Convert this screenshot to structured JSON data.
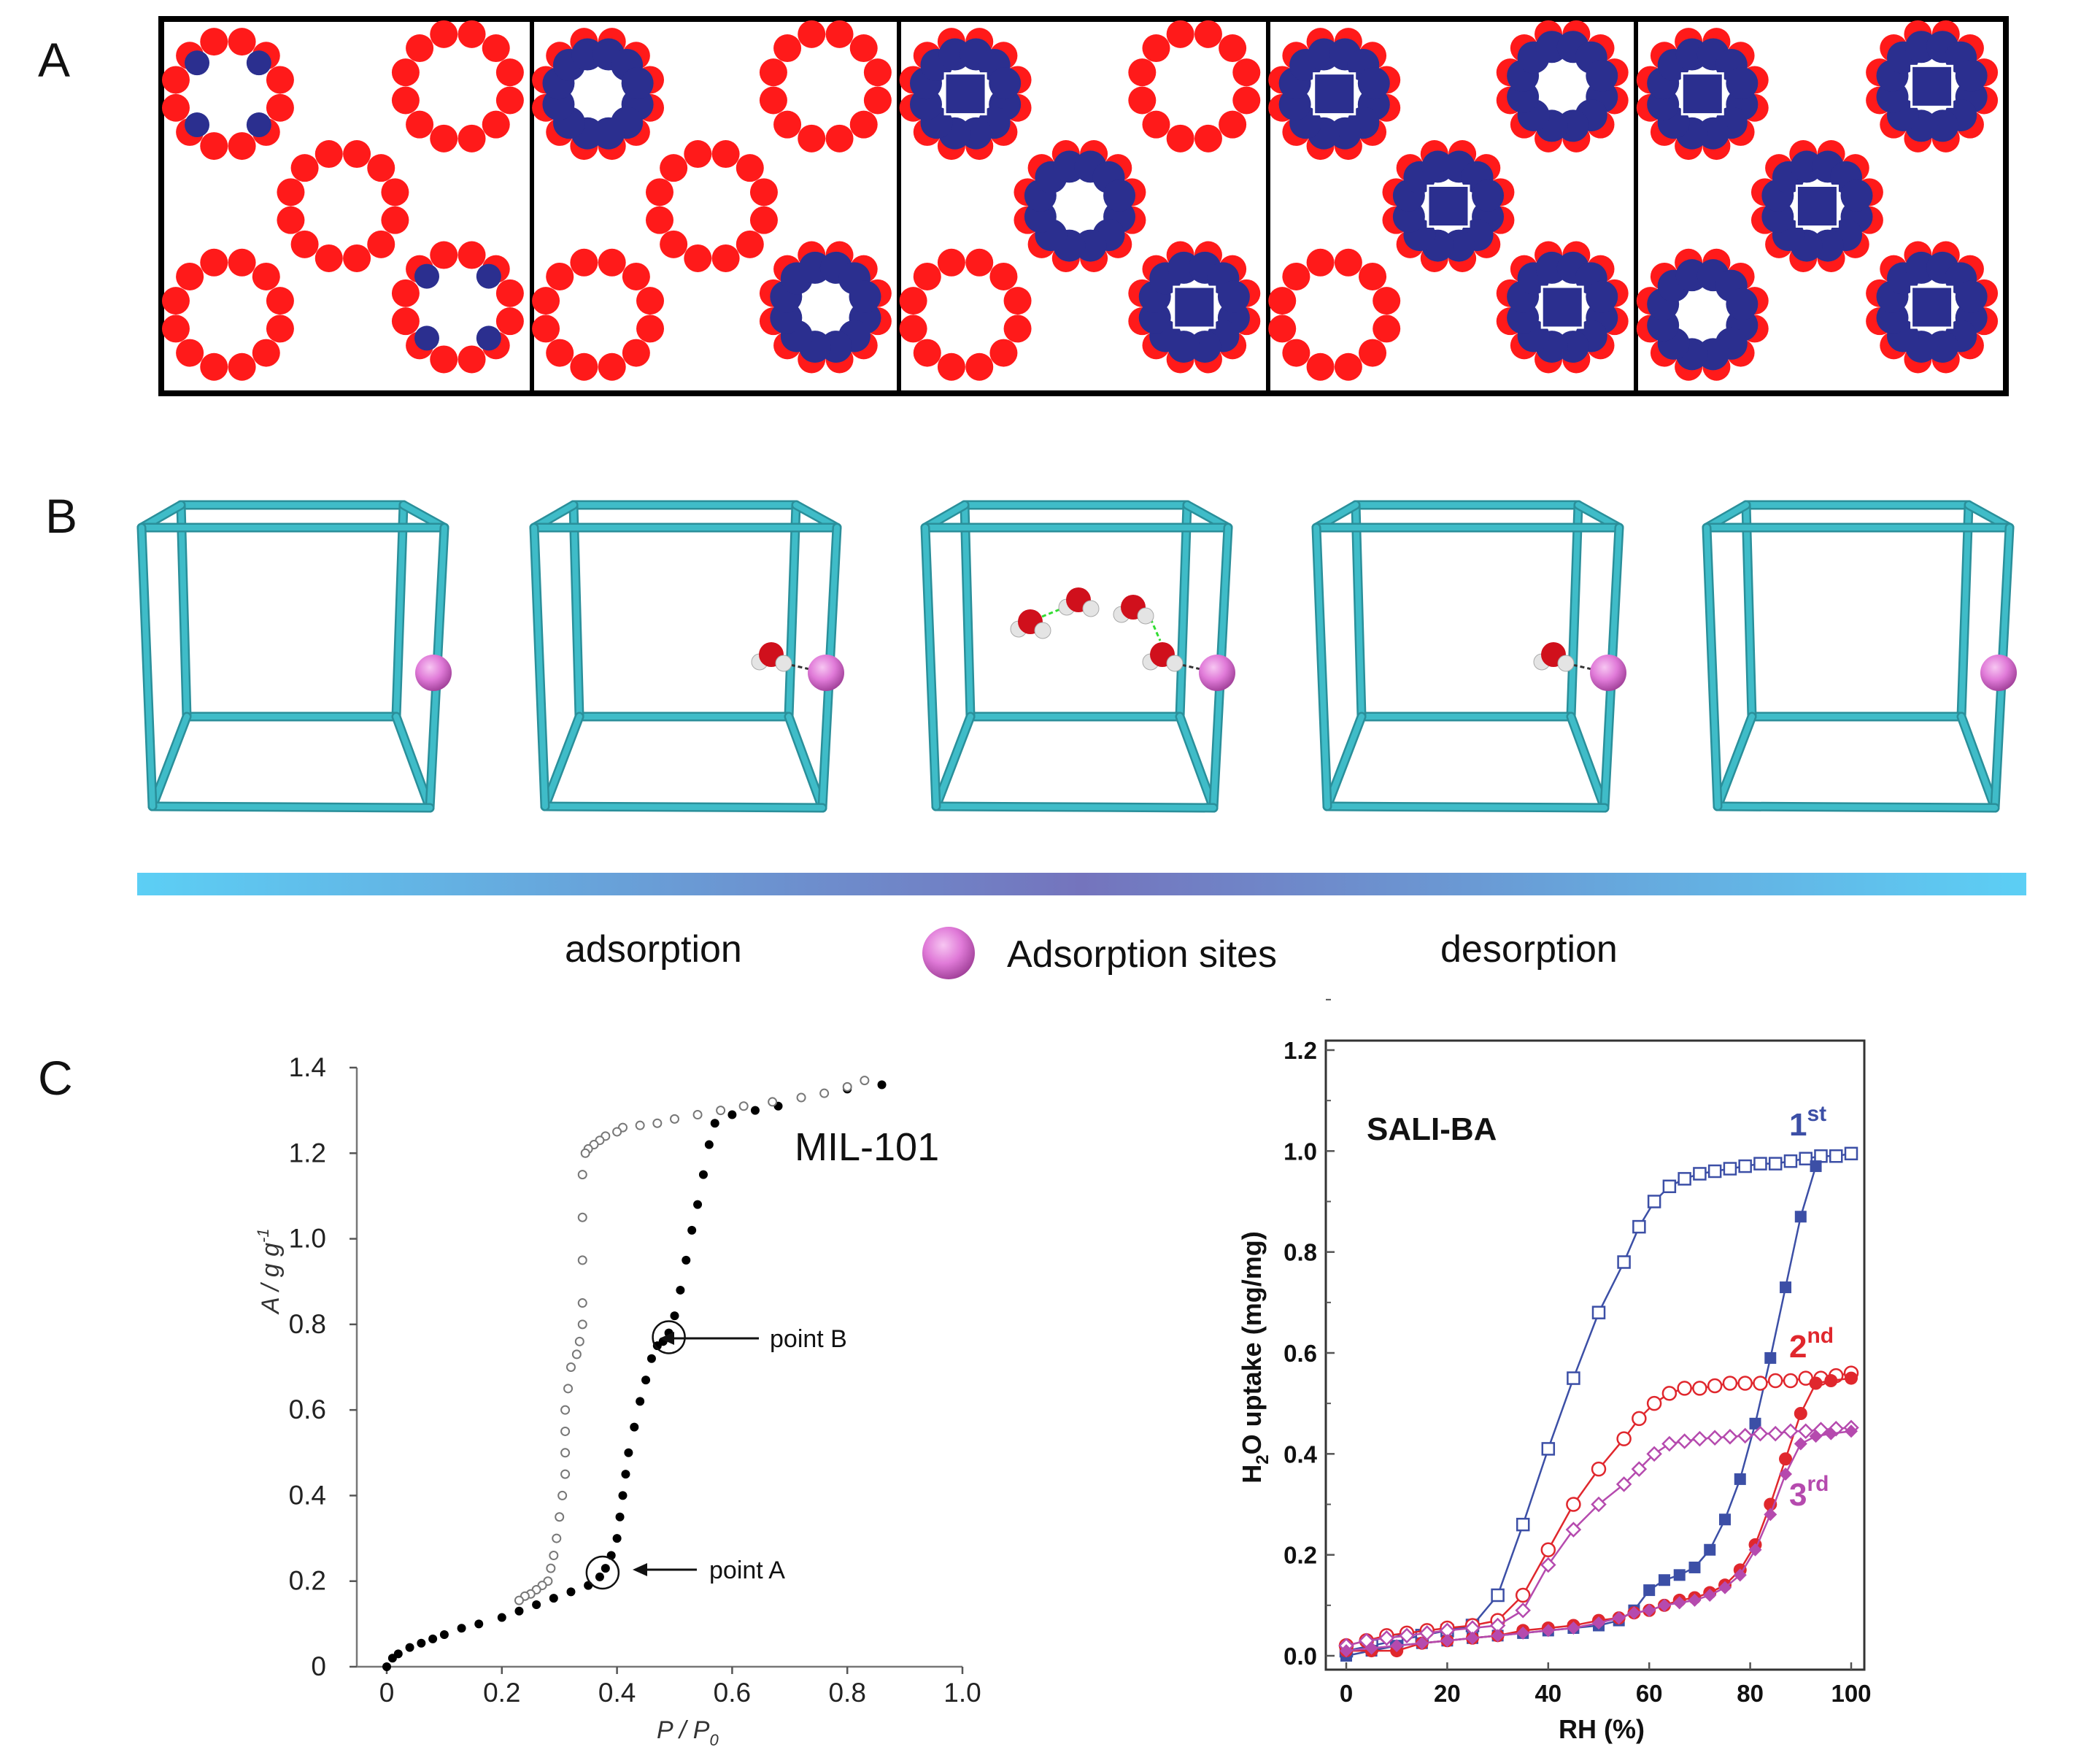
{
  "panel_labels": {
    "a": "A",
    "b": "B",
    "c": "C"
  },
  "panel_a": {
    "colors": {
      "framework": "#ff1a1a",
      "water": "#2b2f8f",
      "border": "#000000"
    },
    "frames": [
      {
        "pores": {
          "tl": "sites",
          "tr": "empty",
          "c": "empty",
          "bl": "empty",
          "br": "sites"
        }
      },
      {
        "pores": {
          "tl": "layer",
          "tr": "empty",
          "c": "empty",
          "bl": "empty",
          "br": "layer"
        }
      },
      {
        "pores": {
          "tl": "filled",
          "tr": "empty",
          "c": "layer",
          "bl": "empty",
          "br": "filled"
        }
      },
      {
        "pores": {
          "tl": "filled",
          "tr": "layer",
          "c": "filled",
          "bl": "empty",
          "br": "filled"
        }
      },
      {
        "pores": {
          "tl": "filled",
          "tr": "filled",
          "c": "filled",
          "bl": "layer",
          "br": "filled"
        }
      }
    ]
  },
  "panel_b": {
    "colors": {
      "cage": "#3fbcc8",
      "site": "#e07ad8",
      "oxygen": "#d0101c",
      "hydrogen": "#e4e4e4",
      "bar_end": "#5ccff5",
      "bar_mid": "#7474bd"
    },
    "cubes": [
      {
        "waters": 0
      },
      {
        "waters": 1
      },
      {
        "waters": 4
      },
      {
        "waters": 1
      },
      {
        "waters": 0
      }
    ],
    "legend": {
      "adsorption": "adsorption",
      "sites": "Adsorption sites",
      "desorption": "desorption"
    }
  },
  "chart_data": [
    {
      "type": "scatter",
      "xlabel": {
        "base": "P / P",
        "sub": "0"
      },
      "ylabel": {
        "base": "A / g g",
        "sup": "-1"
      },
      "xlim": [
        0,
        1.0
      ],
      "ylim": [
        0,
        1.4
      ],
      "xticks": [
        "0",
        "0.2",
        "0.4",
        "0.6",
        "0.8",
        "1.0"
      ],
      "yticks": [
        "0",
        "0.2",
        "0.4",
        "0.6",
        "0.8",
        "1.0",
        "1.2",
        "1.4"
      ],
      "grid": false,
      "annotations": {
        "title": "MIL-101",
        "point_b": "point B",
        "point_a": "point A"
      },
      "marked_points": [
        {
          "label": "point A",
          "x": 0.375,
          "y": 0.22
        },
        {
          "label": "point B",
          "x": 0.49,
          "y": 0.77
        }
      ],
      "series": [
        {
          "marker": "filled",
          "color": "#000000",
          "x": [
            0,
            0.01,
            0.02,
            0.04,
            0.06,
            0.08,
            0.1,
            0.13,
            0.16,
            0.2,
            0.23,
            0.26,
            0.29,
            0.32,
            0.35,
            0.37,
            0.38,
            0.39,
            0.4,
            0.405,
            0.41,
            0.415,
            0.42,
            0.43,
            0.44,
            0.45,
            0.46,
            0.47,
            0.48,
            0.49,
            0.5,
            0.51,
            0.52,
            0.53,
            0.54,
            0.55,
            0.56,
            0.57,
            0.6,
            0.64,
            0.68,
            0.72,
            0.76,
            0.8,
            0.86
          ],
          "y": [
            0,
            0.02,
            0.03,
            0.045,
            0.055,
            0.065,
            0.075,
            0.09,
            0.1,
            0.115,
            0.13,
            0.145,
            0.16,
            0.175,
            0.19,
            0.21,
            0.23,
            0.26,
            0.3,
            0.35,
            0.4,
            0.45,
            0.5,
            0.56,
            0.62,
            0.67,
            0.72,
            0.75,
            0.76,
            0.78,
            0.82,
            0.88,
            0.95,
            1.02,
            1.08,
            1.15,
            1.22,
            1.27,
            1.29,
            1.3,
            1.31,
            1.33,
            1.34,
            1.35,
            1.36
          ]
        },
        {
          "marker": "open",
          "color": "#777777",
          "x": [
            0.83,
            0.8,
            0.76,
            0.72,
            0.67,
            0.62,
            0.58,
            0.54,
            0.5,
            0.47,
            0.44,
            0.41,
            0.4,
            0.38,
            0.37,
            0.36,
            0.35,
            0.345,
            0.34,
            0.34,
            0.34,
            0.34,
            0.34,
            0.335,
            0.33,
            0.32,
            0.315,
            0.31,
            0.31,
            0.31,
            0.31,
            0.305,
            0.3,
            0.295,
            0.29,
            0.285,
            0.28,
            0.27,
            0.26,
            0.25,
            0.24,
            0.23
          ],
          "y": [
            1.37,
            1.355,
            1.34,
            1.33,
            1.32,
            1.31,
            1.3,
            1.29,
            1.28,
            1.27,
            1.265,
            1.26,
            1.25,
            1.24,
            1.23,
            1.22,
            1.21,
            1.2,
            1.15,
            1.05,
            0.95,
            0.85,
            0.8,
            0.76,
            0.73,
            0.7,
            0.65,
            0.6,
            0.55,
            0.5,
            0.45,
            0.4,
            0.35,
            0.3,
            0.26,
            0.23,
            0.2,
            0.19,
            0.18,
            0.17,
            0.165,
            0.155
          ]
        }
      ]
    },
    {
      "type": "line",
      "xlabel": "RH (%)",
      "ylabel": {
        "base": "H",
        "sub": "2",
        "rest": "O uptake (mg/mg)"
      },
      "xlim": [
        0,
        100
      ],
      "ylim": [
        0,
        1.2
      ],
      "xticks": [
        "0",
        "20",
        "40",
        "60",
        "80",
        "100"
      ],
      "yticks": [
        "0.0",
        "0.2",
        "0.4",
        "0.6",
        "0.8",
        "1.0",
        "1.2"
      ],
      "grid": false,
      "title": "SALI-BA",
      "cycle_labels": [
        {
          "base": "1",
          "sup": "st",
          "color": "#3c4fa6"
        },
        {
          "base": "2",
          "sup": "nd",
          "color": "#e0272d"
        },
        {
          "base": "3",
          "sup": "rd",
          "color": "#b54aae"
        }
      ],
      "series": [
        {
          "name": "1st",
          "marker": "open-square",
          "color": "#3c4fa6",
          "x": [
            0,
            5,
            10,
            15,
            20,
            25,
            30,
            35,
            40,
            45,
            50,
            55,
            58,
            61,
            64,
            67,
            70,
            73,
            76,
            79,
            82,
            85,
            88,
            91,
            94,
            97,
            100
          ],
          "y": [
            0.01,
            0.02,
            0.03,
            0.04,
            0.05,
            0.06,
            0.12,
            0.26,
            0.41,
            0.55,
            0.68,
            0.78,
            0.85,
            0.9,
            0.93,
            0.945,
            0.955,
            0.96,
            0.965,
            0.97,
            0.975,
            0.975,
            0.98,
            0.985,
            0.99,
            0.99,
            0.995
          ]
        },
        {
          "name": "1st",
          "marker": "filled-square",
          "color": "#3c4fa6",
          "x": [
            0,
            5,
            10,
            15,
            20,
            25,
            30,
            35,
            40,
            45,
            50,
            54,
            57,
            60,
            63,
            66,
            69,
            72,
            75,
            78,
            81,
            84,
            87,
            90,
            93
          ],
          "y": [
            0,
            0.01,
            0.02,
            0.025,
            0.03,
            0.035,
            0.04,
            0.045,
            0.05,
            0.055,
            0.06,
            0.07,
            0.09,
            0.13,
            0.15,
            0.16,
            0.175,
            0.21,
            0.27,
            0.35,
            0.46,
            0.59,
            0.73,
            0.87,
            0.97
          ]
        },
        {
          "name": "2nd",
          "marker": "open-circle",
          "color": "#e0272d",
          "x": [
            0,
            4,
            8,
            12,
            16,
            20,
            25,
            30,
            35,
            40,
            45,
            50,
            55,
            58,
            61,
            64,
            67,
            70,
            73,
            76,
            79,
            82,
            85,
            88,
            91,
            94,
            97,
            100
          ],
          "y": [
            0.02,
            0.03,
            0.04,
            0.045,
            0.05,
            0.055,
            0.06,
            0.07,
            0.12,
            0.21,
            0.3,
            0.37,
            0.43,
            0.47,
            0.5,
            0.52,
            0.53,
            0.53,
            0.535,
            0.54,
            0.54,
            0.54,
            0.545,
            0.545,
            0.55,
            0.55,
            0.555,
            0.56
          ]
        },
        {
          "name": "2nd",
          "marker": "filled-circle",
          "color": "#e0272d",
          "x": [
            0,
            5,
            10,
            15,
            20,
            25,
            30,
            35,
            40,
            45,
            50,
            54,
            57,
            60,
            63,
            66,
            69,
            72,
            75,
            78,
            81,
            84,
            87,
            90,
            93,
            96,
            100
          ],
          "y": [
            0.01,
            0.01,
            0.01,
            0.025,
            0.03,
            0.035,
            0.04,
            0.05,
            0.055,
            0.06,
            0.07,
            0.075,
            0.085,
            0.09,
            0.1,
            0.11,
            0.115,
            0.125,
            0.14,
            0.17,
            0.22,
            0.3,
            0.39,
            0.48,
            0.54,
            0.545,
            0.55
          ]
        },
        {
          "name": "3rd",
          "marker": "open-diamond",
          "color": "#b54aae",
          "x": [
            0,
            4,
            8,
            12,
            16,
            20,
            25,
            30,
            35,
            40,
            45,
            50,
            55,
            58,
            61,
            64,
            67,
            70,
            73,
            76,
            79,
            82,
            85,
            88,
            91,
            94,
            97,
            100
          ],
          "y": [
            0.02,
            0.03,
            0.035,
            0.04,
            0.045,
            0.05,
            0.055,
            0.06,
            0.09,
            0.18,
            0.25,
            0.3,
            0.34,
            0.37,
            0.4,
            0.42,
            0.425,
            0.43,
            0.432,
            0.434,
            0.436,
            0.44,
            0.44,
            0.445,
            0.445,
            0.448,
            0.45,
            0.452
          ]
        },
        {
          "name": "3rd",
          "marker": "filled-diamond",
          "color": "#b54aae",
          "x": [
            0,
            5,
            10,
            15,
            20,
            25,
            30,
            35,
            40,
            45,
            50,
            54,
            57,
            60,
            63,
            66,
            69,
            72,
            75,
            78,
            81,
            84,
            87,
            90,
            93,
            96,
            100
          ],
          "y": [
            0.01,
            0.015,
            0.02,
            0.025,
            0.03,
            0.035,
            0.04,
            0.045,
            0.05,
            0.055,
            0.065,
            0.075,
            0.085,
            0.09,
            0.1,
            0.105,
            0.11,
            0.12,
            0.135,
            0.16,
            0.21,
            0.28,
            0.36,
            0.42,
            0.435,
            0.44,
            0.445
          ]
        }
      ]
    }
  ]
}
